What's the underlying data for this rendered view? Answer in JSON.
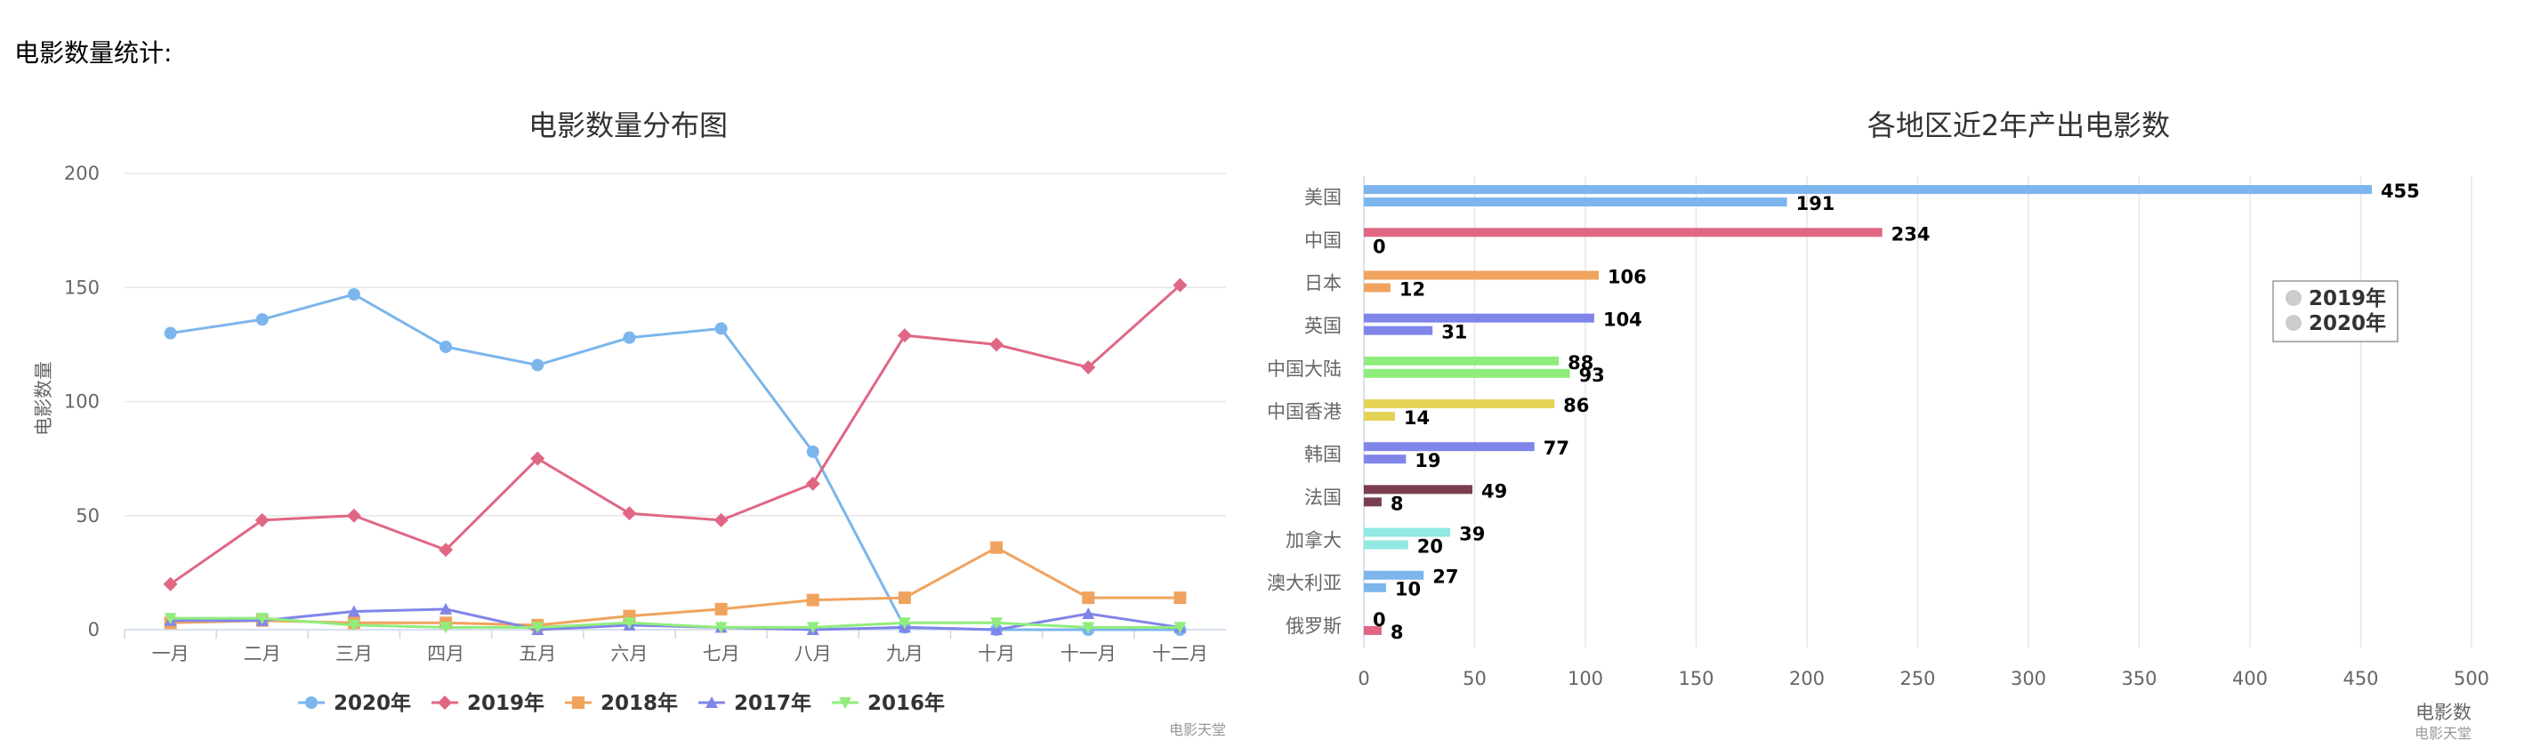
{
  "page": {
    "heading": "电影数量统计:"
  },
  "chart_data": [
    {
      "type": "line",
      "title": "电影数量分布图",
      "ylabel": "电影数量",
      "xlabel": "",
      "credit": "电影天堂",
      "ylim": [
        0,
        200
      ],
      "yticks": [
        0,
        50,
        100,
        150,
        200
      ],
      "categories": [
        "一月",
        "二月",
        "三月",
        "四月",
        "五月",
        "六月",
        "七月",
        "八月",
        "九月",
        "十月",
        "十一月",
        "十二月"
      ],
      "grid": true,
      "legend_position": "bottom",
      "series": [
        {
          "name": "2020年",
          "color": "#7cb5ec",
          "marker": "circle",
          "values": [
            130,
            136,
            147,
            124,
            116,
            128,
            132,
            78,
            1,
            0,
            0,
            0
          ]
        },
        {
          "name": "2019年",
          "color": "#e06784",
          "marker": "diamond",
          "values": [
            20,
            48,
            50,
            35,
            75,
            51,
            48,
            64,
            129,
            125,
            115,
            151
          ]
        },
        {
          "name": "2018年",
          "color": "#f0a35e",
          "marker": "square",
          "values": [
            3,
            4,
            3,
            3,
            2,
            6,
            9,
            13,
            14,
            36,
            14,
            14
          ]
        },
        {
          "name": "2017年",
          "color": "#8085e9",
          "marker": "triangle",
          "values": [
            4,
            4,
            8,
            9,
            0,
            2,
            1,
            0,
            1,
            0,
            7,
            1
          ]
        },
        {
          "name": "2016年",
          "color": "#90ed7d",
          "marker": "triangle-down",
          "values": [
            5,
            5,
            2,
            1,
            1,
            3,
            1,
            1,
            3,
            3,
            1,
            1
          ]
        }
      ]
    },
    {
      "type": "bar",
      "orientation": "horizontal",
      "title": "各地区近2年产出电影数",
      "xlabel": "电影数",
      "credit": "电影天堂",
      "xlim": [
        0,
        500
      ],
      "xticks": [
        0,
        50,
        100,
        150,
        200,
        250,
        300,
        350,
        400,
        450,
        500
      ],
      "grid": true,
      "legend_position": "right",
      "categories": [
        "美国",
        "中国",
        "日本",
        "英国",
        "中国大陆",
        "中国香港",
        "韩国",
        "法国",
        "加拿大",
        "澳大利亚",
        "俄罗斯"
      ],
      "category_colors": [
        "#7cb5ec",
        "#e06784",
        "#f0a35e",
        "#8085e9",
        "#90ed7d",
        "#e4d354",
        "#8085e9",
        "#7a3f4e",
        "#91e8e1",
        "#7cb5ec",
        "#e06784"
      ],
      "series": [
        {
          "name": "2019年",
          "values": [
            455,
            234,
            106,
            104,
            88,
            86,
            77,
            49,
            39,
            27,
            0
          ]
        },
        {
          "name": "2020年",
          "values": [
            191,
            0,
            12,
            31,
            93,
            14,
            19,
            8,
            20,
            10,
            8
          ]
        }
      ],
      "legend_color": "#cccccc"
    }
  ]
}
